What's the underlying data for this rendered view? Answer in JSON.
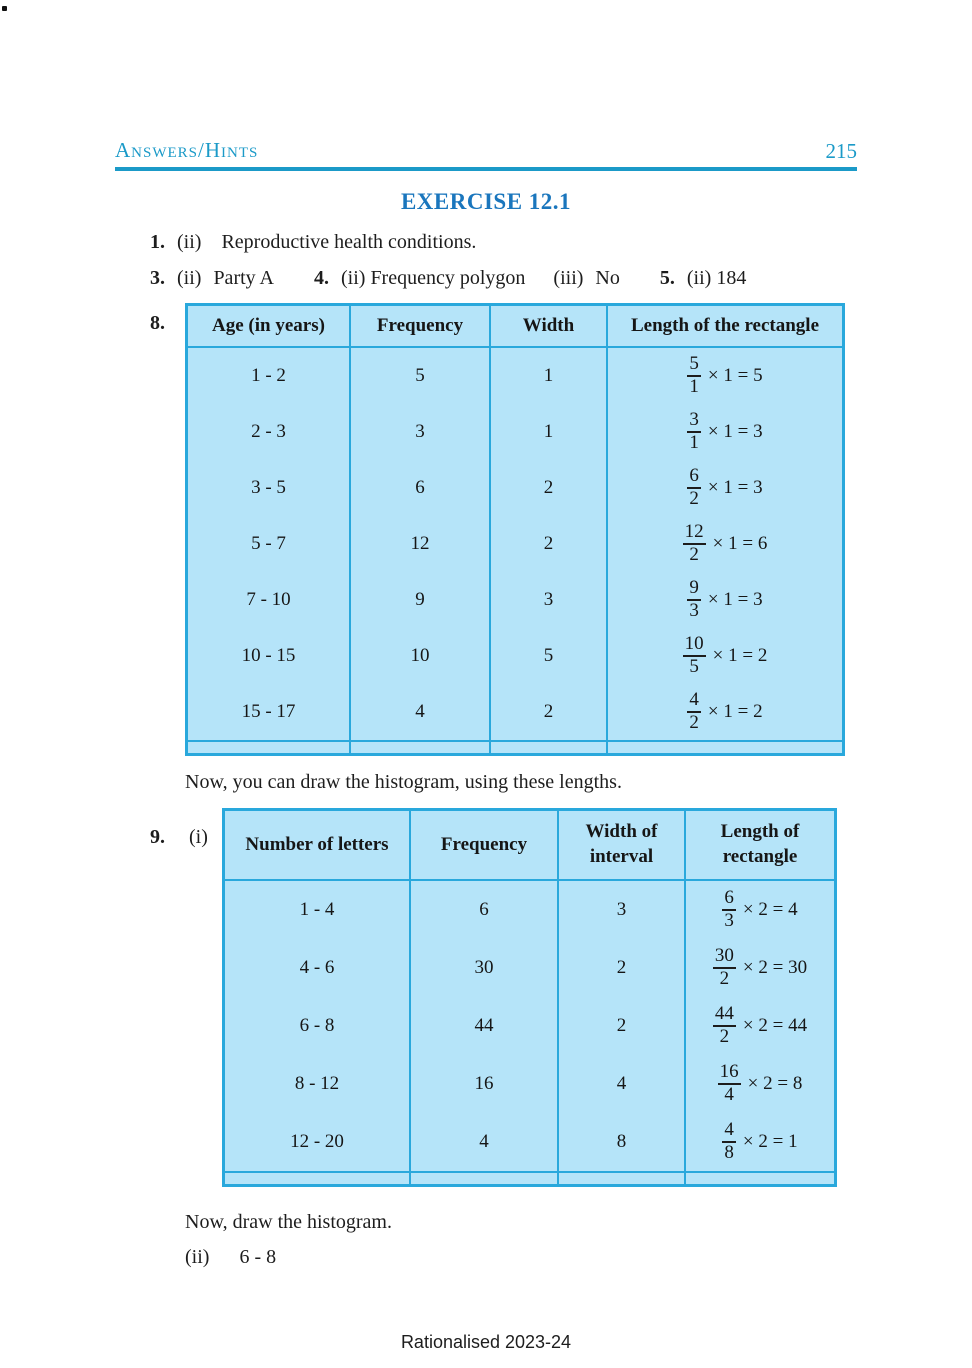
{
  "colors": {
    "teal_header": "#1b9ac8",
    "title_blue": "#1a76bd",
    "table_border": "#29a8dc",
    "table_cell_bg": "#b5e4f9"
  },
  "header": {
    "section": "Answers/Hints",
    "page_number": "215"
  },
  "title": "EXERCISE 12.1",
  "answers": {
    "q1": {
      "number": "1.",
      "part": "(ii)",
      "text": "Reproductive health conditions."
    },
    "q3": {
      "number": "3.",
      "part": "(ii)",
      "text": "Party A"
    },
    "q4": {
      "number": "4.",
      "part": "(ii)",
      "text": "Frequency polygon",
      "part2": "(iii)",
      "text2": "No"
    },
    "q5": {
      "number": "5.",
      "part": "(ii)",
      "text": "184"
    }
  },
  "table8": {
    "number": "8.",
    "headers": [
      "Age (in years)",
      "Frequency",
      "Width",
      "Length of the rectangle"
    ],
    "rows": [
      {
        "interval": "1 - 2",
        "freq": "5",
        "width": "1",
        "num": "5",
        "den": "1",
        "tail": "× 1 = 5"
      },
      {
        "interval": "2 - 3",
        "freq": "3",
        "width": "1",
        "num": "3",
        "den": "1",
        "tail": "× 1 = 3"
      },
      {
        "interval": "3 - 5",
        "freq": "6",
        "width": "2",
        "num": "6",
        "den": "2",
        "tail": "× 1 = 3"
      },
      {
        "interval": "5 - 7",
        "freq": "12",
        "width": "2",
        "num": "12",
        "den": "2",
        "tail": "× 1 = 6"
      },
      {
        "interval": "7 - 10",
        "freq": "9",
        "width": "3",
        "num": "9",
        "den": "3",
        "tail": "× 1 = 3"
      },
      {
        "interval": "10 - 15",
        "freq": "10",
        "width": "5",
        "num": "10",
        "den": "5",
        "tail": "× 1 = 2"
      },
      {
        "interval": "15 - 17",
        "freq": "4",
        "width": "2",
        "num": "4",
        "den": "2",
        "tail": "× 1 = 2"
      }
    ],
    "note": "Now, you can draw the histogram, using these lengths."
  },
  "table9": {
    "number": "9.",
    "part": "(i)",
    "headers": [
      "Number of letters",
      "Frequency",
      "Width of interval",
      "Length of rectangle"
    ],
    "rows": [
      {
        "interval": "1 - 4",
        "freq": "6",
        "width": "3",
        "num": "6",
        "den": "3",
        "tail": "× 2 = 4"
      },
      {
        "interval": "4 - 6",
        "freq": "30",
        "width": "2",
        "num": "30",
        "den": "2",
        "tail": "× 2 = 30"
      },
      {
        "interval": "6 - 8",
        "freq": "44",
        "width": "2",
        "num": "44",
        "den": "2",
        "tail": "× 2 = 44"
      },
      {
        "interval": "8 - 12",
        "freq": "16",
        "width": "4",
        "num": "16",
        "den": "4",
        "tail": "× 2 = 8"
      },
      {
        "interval": "12 - 20",
        "freq": "4",
        "width": "8",
        "num": "4",
        "den": "8",
        "tail": "× 2 = 1"
      }
    ],
    "note": "Now, draw the histogram.",
    "part2": "(ii)",
    "part2_answer": "6 - 8"
  },
  "footer": "Rationalised 2023-24"
}
